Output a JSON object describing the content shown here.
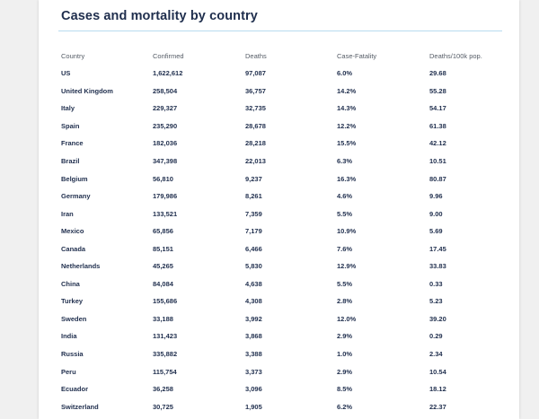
{
  "title": "Cases and mortality by country",
  "columns": [
    "Country",
    "Confirmed",
    "Deaths",
    "Case-Fatality",
    "Deaths/100k pop."
  ],
  "rows": [
    [
      "US",
      "1,622,612",
      "97,087",
      "6.0%",
      "29.68"
    ],
    [
      "United Kingdom",
      "258,504",
      "36,757",
      "14.2%",
      "55.28"
    ],
    [
      "Italy",
      "229,327",
      "32,735",
      "14.3%",
      "54.17"
    ],
    [
      "Spain",
      "235,290",
      "28,678",
      "12.2%",
      "61.38"
    ],
    [
      "France",
      "182,036",
      "28,218",
      "15.5%",
      "42.12"
    ],
    [
      "Brazil",
      "347,398",
      "22,013",
      "6.3%",
      "10.51"
    ],
    [
      "Belgium",
      "56,810",
      "9,237",
      "16.3%",
      "80.87"
    ],
    [
      "Germany",
      "179,986",
      "8,261",
      "4.6%",
      "9.96"
    ],
    [
      "Iran",
      "133,521",
      "7,359",
      "5.5%",
      "9.00"
    ],
    [
      "Mexico",
      "65,856",
      "7,179",
      "10.9%",
      "5.69"
    ],
    [
      "Canada",
      "85,151",
      "6,466",
      "7.6%",
      "17.45"
    ],
    [
      "Netherlands",
      "45,265",
      "5,830",
      "12.9%",
      "33.83"
    ],
    [
      "China",
      "84,084",
      "4,638",
      "5.5%",
      "0.33"
    ],
    [
      "Turkey",
      "155,686",
      "4,308",
      "2.8%",
      "5.23"
    ],
    [
      "Sweden",
      "33,188",
      "3,992",
      "12.0%",
      "39.20"
    ],
    [
      "India",
      "131,423",
      "3,868",
      "2.9%",
      "0.29"
    ],
    [
      "Russia",
      "335,882",
      "3,388",
      "1.0%",
      "2.34"
    ],
    [
      "Peru",
      "115,754",
      "3,373",
      "2.9%",
      "10.54"
    ],
    [
      "Ecuador",
      "36,258",
      "3,096",
      "8.5%",
      "18.12"
    ],
    [
      "Switzerland",
      "30,725",
      "1,905",
      "6.2%",
      "22.37"
    ]
  ],
  "colors": {
    "title": "#1f2e4d",
    "rule": "#b7dcef",
    "header_text": "#555c66",
    "cell_text": "#1f2e4d",
    "page_bg": "#f0f0f0"
  }
}
